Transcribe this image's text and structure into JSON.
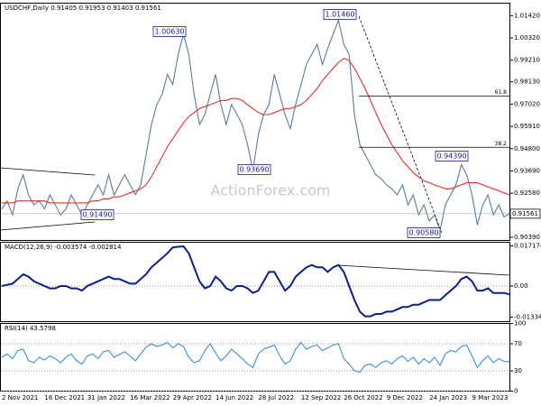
{
  "chart_data": [
    {
      "type": "line",
      "title": "USDCHF,Daily  0.91405 0.91953 0.91403 0.91561",
      "watermark": "ActionForex.com",
      "categories": [
        "2 Nov 2021",
        null,
        null,
        null,
        null,
        null,
        null,
        null,
        "16 Dec 2021",
        null,
        null,
        null,
        null,
        null,
        null,
        null,
        "31 Jan 2022",
        null,
        null,
        null,
        null,
        null,
        null,
        null,
        "16 Mar 2022",
        null,
        null,
        null,
        null,
        null,
        null,
        null,
        "29 Apr 2022",
        null,
        null,
        null,
        null,
        null,
        null,
        null,
        "14 Jun 2022",
        null,
        null,
        null,
        null,
        null,
        null,
        null,
        "28 Jul 2022",
        null,
        null,
        null,
        null,
        null,
        null,
        null,
        "12 Sep 2022",
        null,
        null,
        null,
        null,
        null,
        null,
        null,
        "26 Oct 2022",
        null,
        null,
        null,
        null,
        null,
        null,
        null,
        "9 Dec 2022",
        null,
        null,
        null,
        null,
        null,
        null,
        null,
        "24 Jan 2023",
        null,
        null,
        null,
        null,
        null,
        null,
        null,
        "9 Mar 2023",
        null,
        null,
        null,
        null,
        null,
        null,
        null
      ],
      "series": [
        {
          "color": "#5b7c99",
          "values": [
            0.918,
            0.922,
            0.915,
            0.928,
            0.935,
            0.925,
            0.92,
            0.922,
            0.918,
            0.925,
            0.92,
            0.915,
            0.918,
            0.925,
            0.92,
            0.915,
            0.92,
            0.925,
            0.93,
            0.925,
            0.935,
            0.925,
            0.93,
            0.935,
            0.93,
            0.925,
            0.93,
            0.945,
            0.96,
            0.97,
            0.975,
            0.985,
            0.98,
            0.995,
            1.005,
            0.995,
            0.975,
            0.96,
            0.965,
            0.975,
            0.985,
            0.97,
            0.96,
            0.97,
            0.965,
            0.96,
            0.95,
            0.937,
            0.955,
            0.965,
            0.97,
            0.985,
            0.975,
            0.965,
            0.958,
            0.97,
            0.98,
            0.99,
            0.995,
            1.0,
            0.99,
            0.998,
            1.005,
            1.012,
            1.0,
            0.995,
            0.965,
            0.95,
            0.945,
            0.94,
            0.935,
            0.933,
            0.93,
            0.928,
            0.925,
            0.93,
            0.92,
            0.925,
            0.915,
            0.92,
            0.912,
            0.915,
            0.907,
            0.92,
            0.925,
            0.93,
            0.94,
            0.935,
            0.925,
            0.91,
            0.92,
            0.925,
            0.915,
            0.92,
            0.914,
            0.91561
          ]
        },
        {
          "color": "#e0302a",
          "values": [
            0.921,
            0.921,
            0.921,
            0.922,
            0.922,
            0.922,
            0.922,
            0.922,
            0.922,
            0.921,
            0.921,
            0.921,
            0.921,
            0.921,
            0.921,
            0.921,
            0.921,
            0.922,
            0.922,
            0.923,
            0.923,
            0.924,
            0.924,
            0.925,
            0.926,
            0.927,
            0.928,
            0.93,
            0.934,
            0.939,
            0.944,
            0.949,
            0.953,
            0.957,
            0.961,
            0.964,
            0.966,
            0.968,
            0.969,
            0.97,
            0.971,
            0.972,
            0.972,
            0.973,
            0.973,
            0.972,
            0.97,
            0.968,
            0.966,
            0.965,
            0.965,
            0.966,
            0.967,
            0.968,
            0.968,
            0.969,
            0.97,
            0.972,
            0.975,
            0.978,
            0.982,
            0.985,
            0.988,
            0.991,
            0.993,
            0.992,
            0.988,
            0.983,
            0.978,
            0.972,
            0.966,
            0.96,
            0.955,
            0.95,
            0.946,
            0.942,
            0.939,
            0.936,
            0.934,
            0.932,
            0.931,
            0.93,
            0.929,
            0.928,
            0.928,
            0.929,
            0.93,
            0.931,
            0.931,
            0.931,
            0.93,
            0.929,
            0.928,
            0.927,
            0.926,
            0.925
          ]
        }
      ],
      "ylim": [
        0.9023,
        1.0205
      ],
      "yticks": [
        {
          "value": 1.0142,
          "label": "1.01420"
        },
        {
          "value": 1.0032,
          "label": "1.00320"
        },
        {
          "value": 0.9921,
          "label": "0.99210"
        },
        {
          "value": 0.9813,
          "label": "0.98130"
        },
        {
          "value": 0.9702,
          "label": "0.97020"
        },
        {
          "value": 0.9591,
          "label": "0.95910"
        },
        {
          "value": 0.948,
          "label": "0.94800"
        },
        {
          "value": 0.9369,
          "label": "0.93690"
        },
        {
          "value": 0.9258,
          "label": "0.92580"
        },
        {
          "value": 0.9039,
          "label": "0.90390"
        }
      ],
      "current_price": {
        "value": 0.91561,
        "label": "0.91561"
      },
      "fib_levels": [
        {
          "ratio": 61.8,
          "value": 0.9742
        },
        {
          "ratio": 38.2,
          "value": 0.9487
        }
      ],
      "annotations": [
        "1.00630",
        "0.93690",
        "1.01460",
        "0.94390",
        "0.90580",
        "0.91490"
      ]
    },
    {
      "type": "line",
      "title": "MACD(12,26,9) -0.003574 -0.002814",
      "series": [
        {
          "color": "#0a1e8c",
          "values": [
            0.0,
            0.0005,
            0.001,
            0.003,
            0.005,
            0.004,
            0.002,
            0.001,
            0.0,
            -0.001,
            -0.001,
            0.0,
            0.0,
            -0.001,
            -0.001,
            -0.002,
            0.0,
            0.001,
            0.002,
            0.003,
            0.004,
            0.003,
            0.003,
            0.002,
            0.001,
            0.001,
            0.003,
            0.005,
            0.008,
            0.01,
            0.012,
            0.014,
            0.0165,
            0.0168,
            0.017,
            0.014,
            0.008,
            0.002,
            -0.001,
            0.0,
            0.004,
            0.002,
            -0.001,
            -0.002,
            0.0,
            0.0,
            -0.001,
            -0.003,
            -0.002,
            0.002,
            0.006,
            0.006,
            0.002,
            -0.002,
            0.0,
            0.004,
            0.006,
            0.008,
            0.009,
            0.008,
            0.008,
            0.006,
            0.008,
            0.009,
            0.006,
            0.0,
            -0.006,
            -0.011,
            -0.013,
            -0.013,
            -0.012,
            -0.012,
            -0.011,
            -0.011,
            -0.01,
            -0.009,
            -0.009,
            -0.008,
            -0.008,
            -0.007,
            -0.006,
            -0.006,
            -0.006,
            -0.004,
            -0.002,
            0.0,
            0.003,
            0.004,
            0.002,
            -0.002,
            -0.002,
            -0.001,
            -0.003,
            -0.003,
            -0.003,
            -0.0036
          ]
        }
      ],
      "ylim": [
        -0.01527,
        0.01872
      ],
      "yticks": [
        0.017174,
        {
          "value": 0,
          "label": "0.00"
        },
        -0.01334
      ]
    },
    {
      "type": "line",
      "title": "RSI(14) 43.5798",
      "series": [
        {
          "color": "#3a8fd8",
          "values": [
            50,
            55,
            48,
            60,
            62,
            45,
            42,
            50,
            46,
            52,
            48,
            42,
            50,
            55,
            45,
            40,
            52,
            55,
            48,
            58,
            60,
            50,
            54,
            58,
            52,
            45,
            55,
            65,
            70,
            66,
            68,
            72,
            64,
            70,
            66,
            50,
            42,
            45,
            60,
            70,
            56,
            45,
            52,
            62,
            55,
            48,
            40,
            35,
            55,
            62,
            65,
            68,
            52,
            40,
            45,
            62,
            72,
            62,
            66,
            68,
            60,
            64,
            68,
            70,
            48,
            40,
            30,
            28,
            38,
            40,
            35,
            42,
            45,
            40,
            48,
            52,
            44,
            50,
            40,
            48,
            42,
            50,
            38,
            55,
            60,
            58,
            66,
            68,
            52,
            35,
            45,
            52,
            42,
            48,
            44,
            43.58
          ]
        }
      ],
      "ylim": [
        0,
        100
      ],
      "yticks": [
        100,
        70,
        30,
        0
      ]
    }
  ]
}
